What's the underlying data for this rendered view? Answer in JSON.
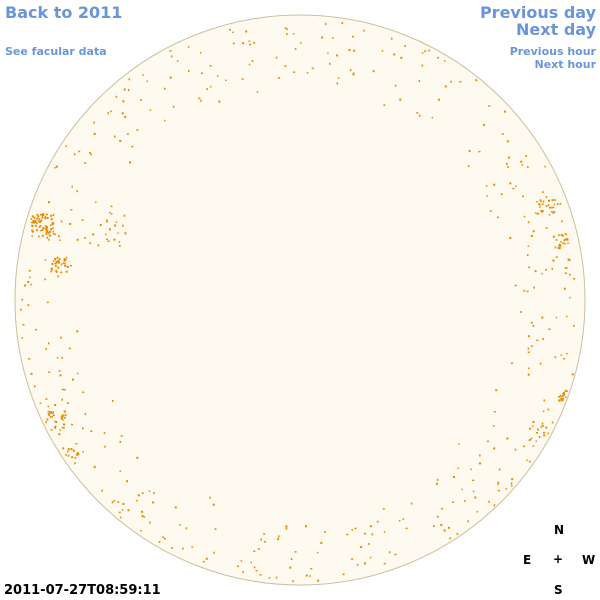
{
  "nav": {
    "back": "Back to 2011",
    "facular": "See facular data",
    "prev_day": "Previous day",
    "next_day": "Next day",
    "prev_hour": "Previous hour",
    "next_hour": "Next hour"
  },
  "compass": {
    "north": "N",
    "east": "E",
    "center": "+",
    "west": "W",
    "south": "S"
  },
  "timestamp": "2011-07-27T08:59:11",
  "colors": {
    "link": "#6a95d8",
    "disk_fill": "#fefaf0",
    "disk_edge": "#cdbf9e",
    "facula": "#e68a00"
  }
}
